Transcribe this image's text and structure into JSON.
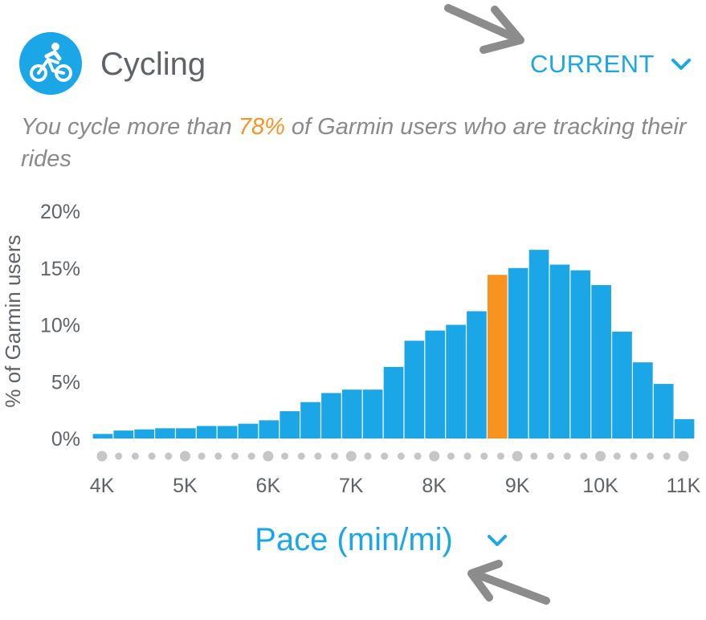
{
  "header": {
    "activity_title": "Cycling",
    "activity_icon": "cyclist-icon",
    "period_label": "CURRENT",
    "period_icon": "chevron-down-icon"
  },
  "summary": {
    "before": "You cycle more than ",
    "percent": "78%",
    "after": " of Garmin users who are tracking their rides"
  },
  "metric_selector": {
    "label": "Pace (min/mi)",
    "icon": "chevron-down-icon"
  },
  "colors": {
    "accent": "#1ba6e8",
    "highlight": "#f7931e",
    "axis_text": "#5f6368",
    "dot": "#c6c6c6",
    "annotation_arrow": "#8c8c8c"
  },
  "chart_data": {
    "type": "bar",
    "ylabel": "% of  Garmin users",
    "xlabel": "",
    "ylim": [
      0,
      20
    ],
    "y_ticks": [
      "20%",
      "15%",
      "10%",
      "5%",
      "0%"
    ],
    "y_tick_values": [
      20,
      15,
      10,
      5,
      0
    ],
    "x_ticks": [
      "4K",
      "5K",
      "6K",
      "7K",
      "8K",
      "9K",
      "10K",
      "11K"
    ],
    "x_tick_values": [
      4,
      5,
      6,
      7,
      8,
      9,
      10,
      11
    ],
    "x_range": [
      4,
      11
    ],
    "highlight_index": 19,
    "values": [
      0.4,
      0.7,
      0.8,
      0.9,
      0.9,
      1.1,
      1.1,
      1.3,
      1.6,
      2.4,
      3.2,
      4.0,
      4.3,
      4.3,
      6.3,
      8.6,
      9.5,
      10.0,
      11.2,
      14.4,
      15.0,
      16.6,
      15.3,
      14.8,
      13.5,
      9.4,
      6.7,
      4.8,
      1.7
    ]
  }
}
